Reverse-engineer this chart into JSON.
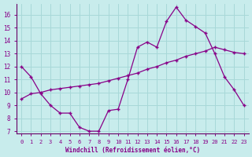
{
  "xlabel": "Windchill (Refroidissement éolien,°C)",
  "bg_color": "#c8ecec",
  "grid_color": "#a8d8d8",
  "line_color": "#880088",
  "spine_color": "#660066",
  "xlim": [
    -0.5,
    23.5
  ],
  "ylim": [
    6.8,
    16.9
  ],
  "yticks": [
    7,
    8,
    9,
    10,
    11,
    12,
    13,
    14,
    15,
    16
  ],
  "xticks": [
    0,
    1,
    2,
    3,
    4,
    5,
    6,
    7,
    8,
    9,
    10,
    11,
    12,
    13,
    14,
    15,
    16,
    17,
    18,
    19,
    20,
    21,
    22,
    23
  ],
  "line1_x": [
    0,
    1,
    2,
    3,
    4,
    5,
    6,
    7,
    8,
    9,
    10,
    11,
    12,
    13,
    14,
    15,
    16,
    17,
    18,
    19,
    20,
    21,
    22,
    23
  ],
  "line1_y": [
    12.0,
    11.2,
    9.9,
    9.0,
    8.4,
    8.4,
    7.3,
    7.0,
    7.0,
    8.6,
    8.7,
    11.0,
    13.5,
    13.9,
    13.5,
    15.5,
    16.6,
    15.6,
    15.1,
    14.6,
    13.0,
    11.2,
    10.2,
    9.0
  ],
  "line2_x": [
    0,
    1,
    2,
    3,
    4,
    5,
    6,
    7,
    8,
    9,
    10,
    11,
    12,
    13,
    14,
    15,
    16,
    17,
    18,
    19,
    20,
    21,
    22,
    23
  ],
  "line2_y": [
    9.5,
    9.9,
    10.0,
    10.2,
    10.3,
    10.4,
    10.5,
    10.6,
    10.7,
    10.9,
    11.1,
    11.3,
    11.5,
    11.8,
    12.0,
    12.3,
    12.5,
    12.8,
    13.0,
    13.2,
    13.5,
    13.3,
    13.1,
    13.0
  ]
}
